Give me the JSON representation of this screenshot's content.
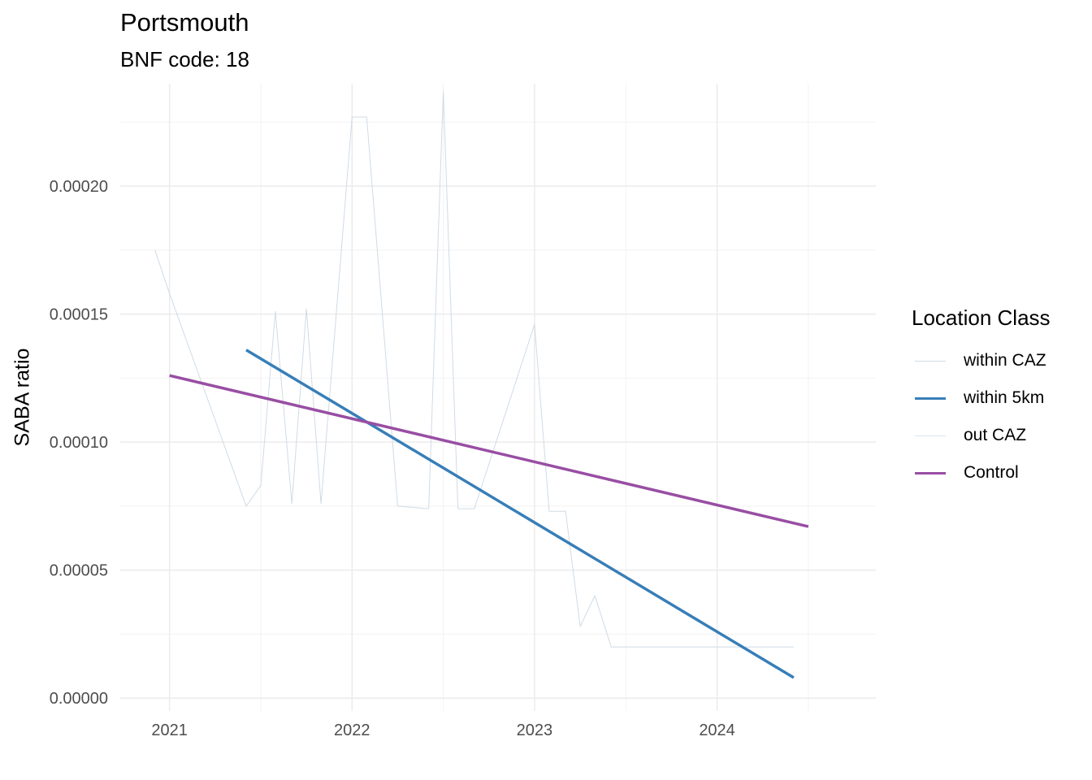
{
  "chart_data": {
    "type": "line",
    "title": "Portsmouth",
    "subtitle": "BNF code: 18",
    "xlabel": "",
    "ylabel": "SABA ratio",
    "xlim": [
      2020.73,
      2024.87
    ],
    "ylim": [
      -5e-06,
      0.00024
    ],
    "x_ticks": [
      2021,
      2022,
      2023,
      2024
    ],
    "x_tick_labels": [
      "2021",
      "2022",
      "2023",
      "2024"
    ],
    "y_ticks": [
      0.0,
      5e-05,
      0.0001,
      0.00015,
      0.0002
    ],
    "y_tick_labels": [
      "0.00000",
      "0.00005",
      "0.00010",
      "0.00015",
      "0.00020"
    ],
    "grid": true,
    "legend": {
      "title": "Location Class",
      "placement": "right",
      "entries": [
        {
          "name": "within CAZ",
          "color": "#cfdbe6",
          "width": 1
        },
        {
          "name": "within 5km",
          "color": "#377eb8",
          "width": 3.5
        },
        {
          "name": "out CAZ",
          "color": "#dbe4ee",
          "width": 1
        },
        {
          "name": "Control",
          "color": "#984ea3",
          "width": 3.5
        }
      ]
    },
    "series": [
      {
        "name": "within CAZ",
        "style": "thin",
        "color": "#cfdbe6",
        "x": [
          2020.92,
          2021.0,
          2021.42,
          2021.5,
          2021.58,
          2021.67,
          2021.75,
          2021.83,
          2022.0,
          2022.08,
          2022.25,
          2022.42,
          2022.5,
          2022.58,
          2022.67,
          2023.0,
          2023.08,
          2023.17,
          2023.25,
          2023.33,
          2023.42,
          2023.75,
          2024.0,
          2024.42
        ],
        "y": [
          0.000175,
          0.000158,
          7.5e-05,
          8.3e-05,
          0.000151,
          7.6e-05,
          0.000152,
          7.6e-05,
          0.000227,
          0.000227,
          7.5e-05,
          7.4e-05,
          0.000237,
          7.4e-05,
          7.4e-05,
          0.000146,
          7.3e-05,
          7.3e-05,
          2.8e-05,
          4e-05,
          2e-05,
          2e-05,
          2e-05,
          2e-05
        ]
      },
      {
        "name": "within 5km",
        "style": "thick",
        "color": "#377eb8",
        "x": [
          2021.42,
          2024.42
        ],
        "y": [
          0.000136,
          8e-06
        ]
      },
      {
        "name": "Control",
        "style": "thick",
        "color": "#984ea3",
        "x": [
          2021.0,
          2024.5
        ],
        "y": [
          0.000126,
          6.7e-05
        ]
      }
    ]
  }
}
